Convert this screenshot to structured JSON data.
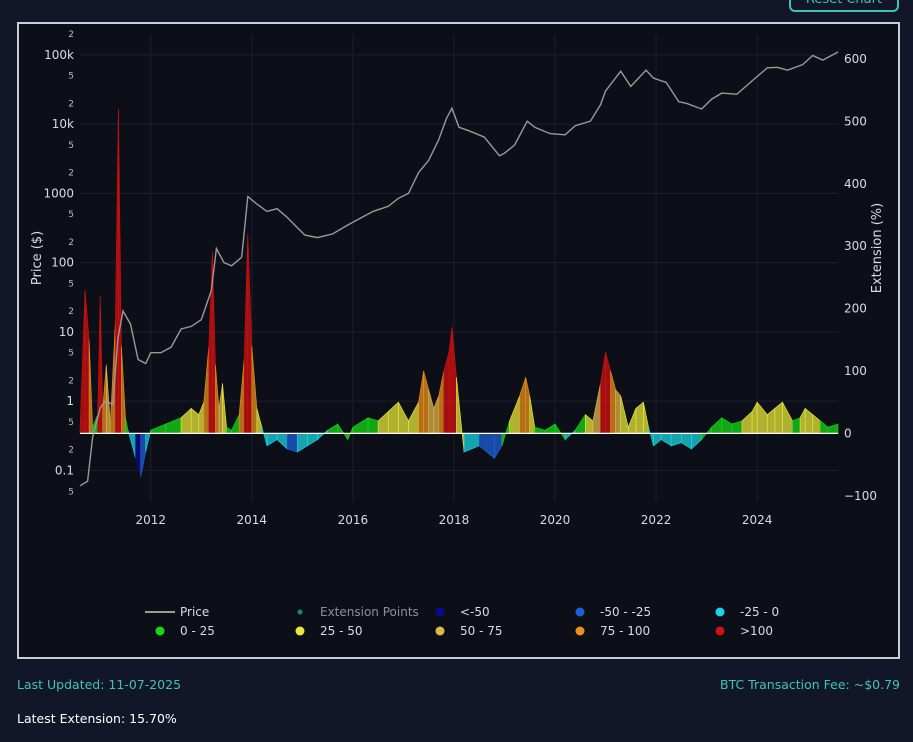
{
  "reset_button": {
    "label": "Reset Chart"
  },
  "footer": {
    "last_updated": "Last Updated: 11-07-2025",
    "fee": "BTC Transaction Fee: ~$0.79",
    "latest_extension": "Latest Extension: 15.70%"
  },
  "colors": {
    "background": "#111729",
    "plot_bg": "#0c0f18",
    "accent": "#3fc4b0",
    "price_line": "#9a9a9a",
    "lt_neg50": "#0a0a8c",
    "neg50_neg25": "#1f5fd8",
    "neg25_0": "#19d6e0",
    "p0_25": "#16d916",
    "p25_50": "#e8e83a",
    "p50_75": "#e2b84a",
    "p75_100": "#e8921a",
    "gt100": "#d11010"
  },
  "chart_data": {
    "type": "line",
    "xlabel": "",
    "ylabel_left": "Price ($)",
    "ylabel_right": "Extension (%)",
    "x_ticks": [
      "2012",
      "2014",
      "2016",
      "2018",
      "2020",
      "2022",
      "2024"
    ],
    "y_left_scale": "log",
    "y_left_range": [
      0.035,
      200000
    ],
    "y_left_major_ticks": [
      "0.1",
      "1",
      "10",
      "100",
      "1000",
      "10k",
      "100k"
    ],
    "y_left_minor_labels": [
      "2",
      "5"
    ],
    "y_right_range": [
      -110,
      640
    ],
    "y_right_ticks": [
      "−100",
      "0",
      "100",
      "200",
      "300",
      "400",
      "500",
      "600"
    ],
    "x_range": [
      2010.6,
      2025.6
    ],
    "grid": true,
    "legend_position": "bottom",
    "legend": [
      {
        "label": "Price",
        "type": "line"
      },
      {
        "label": "Extension Points",
        "type": "marker"
      },
      {
        "label": "<-50",
        "type": "marker"
      },
      {
        "label": "-50 - -25",
        "type": "marker"
      },
      {
        "label": "-25 - 0",
        "type": "marker"
      },
      {
        "label": "0 - 25",
        "type": "marker"
      },
      {
        "label": "25 - 50",
        "type": "marker"
      },
      {
        "label": "50 - 75",
        "type": "marker"
      },
      {
        "label": "75 - 100",
        "type": "marker"
      },
      {
        "label": ">100",
        "type": "marker"
      }
    ],
    "price_series": {
      "x": [
        2010.6,
        2010.75,
        2010.85,
        2011.0,
        2011.1,
        2011.25,
        2011.35,
        2011.45,
        2011.6,
        2011.75,
        2011.9,
        2012.0,
        2012.2,
        2012.4,
        2012.6,
        2012.8,
        2013.0,
        2013.2,
        2013.3,
        2013.45,
        2013.6,
        2013.8,
        2013.92,
        2014.1,
        2014.3,
        2014.5,
        2014.7,
        2014.9,
        2015.05,
        2015.3,
        2015.6,
        2015.9,
        2016.1,
        2016.4,
        2016.7,
        2016.9,
        2017.1,
        2017.3,
        2017.5,
        2017.7,
        2017.85,
        2017.96,
        2018.1,
        2018.3,
        2018.6,
        2018.9,
        2019.0,
        2019.2,
        2019.45,
        2019.6,
        2019.9,
        2020.2,
        2020.4,
        2020.7,
        2020.9,
        2021.0,
        2021.3,
        2021.5,
        2021.8,
        2021.95,
        2022.2,
        2022.45,
        2022.6,
        2022.9,
        2023.1,
        2023.3,
        2023.6,
        2023.9,
        2024.2,
        2024.4,
        2024.6,
        2024.9,
        2025.1,
        2025.3,
        2025.6
      ],
      "y": [
        0.06,
        0.07,
        0.3,
        0.8,
        1.0,
        0.9,
        8,
        20,
        13,
        4,
        3.5,
        5,
        5,
        6,
        11,
        12,
        15,
        40,
        160,
        100,
        90,
        120,
        900,
        700,
        550,
        600,
        450,
        320,
        250,
        230,
        260,
        350,
        420,
        550,
        650,
        850,
        1000,
        2000,
        3000,
        6000,
        12000,
        17000,
        9000,
        8000,
        6500,
        3500,
        3800,
        5000,
        11000,
        9000,
        7300,
        7000,
        9500,
        11000,
        19000,
        30000,
        58000,
        35000,
        60000,
        46000,
        40000,
        21000,
        20000,
        16500,
        23000,
        28000,
        27000,
        42000,
        65000,
        66000,
        60000,
        72000,
        98000,
        84000,
        110000
      ]
    },
    "extension_series": {
      "x": [
        2010.6,
        2010.7,
        2010.78,
        2010.85,
        2010.95,
        2011.0,
        2011.05,
        2011.12,
        2011.2,
        2011.3,
        2011.36,
        2011.42,
        2011.5,
        2011.55,
        2011.7,
        2011.8,
        2011.9,
        2012.0,
        2012.3,
        2012.6,
        2012.8,
        2012.95,
        2013.05,
        2013.15,
        2013.22,
        2013.28,
        2013.35,
        2013.42,
        2013.5,
        2013.6,
        2013.75,
        2013.85,
        2013.92,
        2014.0,
        2014.1,
        2014.2,
        2014.3,
        2014.5,
        2014.7,
        2014.9,
        2015.1,
        2015.3,
        2015.5,
        2015.7,
        2015.9,
        2016.0,
        2016.3,
        2016.5,
        2016.7,
        2016.9,
        2017.1,
        2017.3,
        2017.4,
        2017.5,
        2017.6,
        2017.7,
        2017.8,
        2017.9,
        2017.96,
        2018.05,
        2018.2,
        2018.5,
        2018.8,
        2018.95,
        2019.1,
        2019.3,
        2019.42,
        2019.5,
        2019.6,
        2019.8,
        2020.0,
        2020.2,
        2020.4,
        2020.6,
        2020.75,
        2020.9,
        2021.0,
        2021.1,
        2021.2,
        2021.3,
        2021.45,
        2021.6,
        2021.75,
        2021.85,
        2021.95,
        2022.1,
        2022.3,
        2022.5,
        2022.7,
        2022.9,
        2023.1,
        2023.3,
        2023.5,
        2023.7,
        2023.9,
        2024.0,
        2024.2,
        2024.35,
        2024.5,
        2024.7,
        2024.85,
        2024.95,
        2025.1,
        2025.25,
        2025.4,
        2025.6
      ],
      "y": [
        5,
        230,
        150,
        10,
        30,
        220,
        40,
        110,
        15,
        180,
        520,
        140,
        25,
        5,
        -40,
        -70,
        -30,
        5,
        15,
        25,
        40,
        30,
        50,
        140,
        290,
        110,
        40,
        80,
        10,
        5,
        30,
        120,
        320,
        140,
        40,
        10,
        -20,
        -10,
        -25,
        -30,
        -20,
        -10,
        5,
        15,
        -10,
        10,
        25,
        20,
        35,
        50,
        20,
        50,
        100,
        70,
        40,
        60,
        100,
        130,
        170,
        90,
        -30,
        -20,
        -40,
        -20,
        20,
        60,
        90,
        60,
        10,
        5,
        15,
        -10,
        5,
        30,
        20,
        80,
        130,
        100,
        70,
        60,
        10,
        40,
        50,
        10,
        -20,
        -10,
        -20,
        -15,
        -25,
        -10,
        10,
        25,
        15,
        20,
        35,
        50,
        30,
        40,
        50,
        20,
        25,
        40,
        30,
        20,
        10,
        15
      ]
    }
  }
}
